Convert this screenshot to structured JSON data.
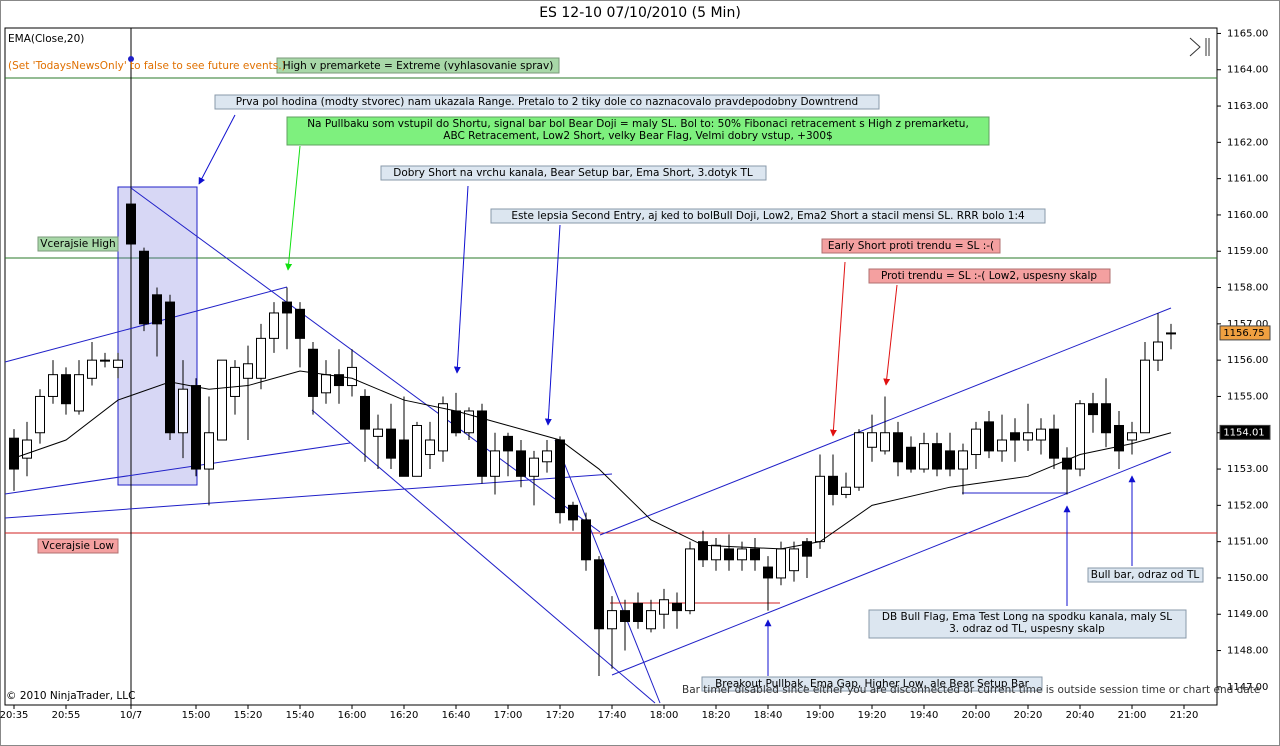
{
  "chart_data": {
    "type": "candlestick",
    "title": "ES 12-10  07/10/2010 (5 Min)",
    "categories": [
      "20:35",
      null,
      null,
      null,
      "20:55",
      null,
      null,
      null,
      null,
      "10/7",
      null,
      null,
      null,
      null,
      "15:00",
      null,
      null,
      null,
      "15:20",
      null,
      null,
      null,
      "15:40",
      null,
      null,
      null,
      "16:00",
      null,
      null,
      null,
      "16:20",
      null,
      null,
      null,
      "16:40",
      null,
      null,
      null,
      "17:00",
      null,
      null,
      null,
      "17:20",
      null,
      null,
      null,
      "17:40",
      null,
      null,
      null,
      "18:00",
      null,
      null,
      null,
      "18:20",
      null,
      null,
      null,
      "18:40",
      null,
      null,
      null,
      "19:00",
      null,
      null,
      null,
      "19:20",
      null,
      null,
      null,
      "19:40",
      null,
      null,
      null,
      "20:00",
      null,
      null,
      null,
      "20:20",
      null,
      null,
      null,
      "20:40",
      null,
      null,
      null,
      "21:00",
      null,
      null,
      null,
      "21:20"
    ],
    "open": [
      1153.85,
      1153.3,
      1154.0,
      1155.0,
      1155.6,
      1154.6,
      1155.5,
      1156.0,
      1155.8,
      1160.3,
      1159.0,
      1157.8,
      1157.6,
      1154.0,
      1155.3,
      1153.0,
      1153.8,
      1155.0,
      1155.5,
      1155.5,
      1156.6,
      1157.6,
      1157.4,
      1156.3,
      1155.1,
      1155.6,
      1155.3,
      1155.0,
      1153.9,
      1154.1,
      1153.8,
      1152.8,
      1153.4,
      1153.5,
      1154.6,
      1154.0,
      1154.6,
      1152.8,
      1153.9,
      1153.5,
      1152.8,
      1153.2,
      1153.8,
      1152.0,
      1151.6,
      1150.5,
      1148.6,
      1149.1,
      1149.3,
      1148.6,
      1149.0,
      1149.3,
      1149.1,
      1151.0,
      1150.5,
      1150.8,
      1150.5,
      1150.8,
      1150.3,
      1150.0,
      1150.2,
      1151.0,
      1151.0,
      1152.8,
      1152.3,
      1152.5,
      1153.6,
      1153.5,
      1154.0,
      1153.6,
      1153.0,
      1153.7,
      1153.5,
      1153.0,
      1153.4,
      1154.3,
      1153.5,
      1154.0,
      1153.8,
      1153.8,
      1154.1,
      1153.3,
      1153.0,
      1154.8,
      1154.8,
      1154.2,
      1153.8,
      1154.0,
      1156.0,
      1156.75,
      null
    ],
    "high": [
      1154.1,
      1154.3,
      1155.2,
      1156.0,
      1155.8,
      1156.0,
      1156.5,
      1156.2,
      1156.2,
      1160.7,
      1159.1,
      1158.0,
      1157.8,
      1156.0,
      1155.5,
      1155.0,
      1156.0,
      1156.0,
      1156.4,
      1157.0,
      1157.6,
      1158.0,
      1157.6,
      1156.5,
      1156.0,
      1156.3,
      1156.3,
      1155.2,
      1154.5,
      1154.8,
      1155.0,
      1154.3,
      1154.3,
      1155.0,
      1155.1,
      1154.7,
      1154.8,
      1154.0,
      1154.0,
      1153.8,
      1153.5,
      1153.8,
      1153.9,
      1152.1,
      1151.8,
      1150.6,
      1149.5,
      1149.4,
      1149.6,
      1149.4,
      1149.7,
      1149.6,
      1151.0,
      1151.3,
      1151.1,
      1151.2,
      1151.0,
      1151.1,
      1150.6,
      1151.0,
      1151.0,
      1151.1,
      1153.4,
      1153.4,
      1152.9,
      1154.1,
      1154.5,
      1155.0,
      1154.3,
      1153.9,
      1154.0,
      1154.0,
      1154.0,
      1153.7,
      1154.3,
      1154.6,
      1154.5,
      1154.4,
      1154.8,
      1154.4,
      1154.5,
      1153.6,
      1154.9,
      1155.1,
      1155.5,
      1154.6,
      1154.3,
      1156.5,
      1157.3,
      1157.0,
      null
    ],
    "low": [
      1152.4,
      1152.8,
      1153.7,
      1154.8,
      1154.5,
      1154.5,
      1155.3,
      1155.8,
      1155.5,
      1158.9,
      1156.8,
      1156.1,
      1153.8,
      1153.3,
      1152.8,
      1152.0,
      1153.8,
      1154.5,
      1153.8,
      1155.2,
      1156.2,
      1156.3,
      1155.8,
      1154.5,
      1154.8,
      1154.8,
      1155.0,
      1153.2,
      1153.0,
      1153.0,
      1152.8,
      1152.8,
      1153.0,
      1153.2,
      1153.9,
      1153.8,
      1152.6,
      1152.3,
      1152.8,
      1152.5,
      1152.0,
      1152.9,
      1151.5,
      1151.3,
      1150.2,
      1147.3,
      1147.5,
      1148.0,
      1148.6,
      1148.5,
      1148.6,
      1148.6,
      1149.0,
      1150.3,
      1150.2,
      1150.2,
      1150.2,
      1150.2,
      1149.1,
      1149.8,
      1149.9,
      1150.0,
      1150.8,
      1152.0,
      1152.2,
      1152.4,
      1153.2,
      1153.4,
      1152.8,
      1152.9,
      1152.9,
      1152.8,
      1152.8,
      1152.3,
      1153.0,
      1153.3,
      1153.2,
      1153.2,
      1153.5,
      1153.4,
      1153.0,
      1152.3,
      1152.8,
      1154.0,
      1153.6,
      1153.0,
      1153.4,
      1154.0,
      1155.7,
      1156.3,
      null
    ],
    "close": [
      1153.0,
      1153.8,
      1155.0,
      1155.6,
      1154.8,
      1155.6,
      1156.0,
      1156.0,
      1156.0,
      1159.2,
      1157.0,
      1157.0,
      1154.0,
      1155.2,
      1153.0,
      1154.0,
      1156.0,
      1155.8,
      1155.9,
      1156.6,
      1157.3,
      1157.3,
      1156.6,
      1155.0,
      1155.6,
      1155.3,
      1155.8,
      1154.1,
      1154.1,
      1153.3,
      1152.8,
      1154.2,
      1153.8,
      1154.8,
      1154.0,
      1154.6,
      1152.8,
      1153.5,
      1153.5,
      1152.8,
      1153.3,
      1153.5,
      1151.8,
      1151.6,
      1150.5,
      1148.6,
      1149.1,
      1148.8,
      1148.8,
      1149.1,
      1149.4,
      1149.1,
      1150.8,
      1150.5,
      1150.9,
      1150.5,
      1150.8,
      1150.5,
      1150.0,
      1150.8,
      1150.8,
      1150.6,
      1152.8,
      1152.3,
      1152.5,
      1154.0,
      1154.0,
      1154.0,
      1153.2,
      1153.0,
      1153.7,
      1153.0,
      1153.0,
      1153.5,
      1154.1,
      1153.5,
      1153.8,
      1153.8,
      1154.0,
      1154.1,
      1153.3,
      1153.0,
      1154.8,
      1154.5,
      1154.0,
      1153.5,
      1154.0,
      1156.0,
      1156.5,
      1156.75,
      null
    ],
    "up_color": "#ffffff",
    "down_color": "#000000",
    "series": [
      {
        "name": "EMA(Close,20)",
        "color": "#000000",
        "x": [
          0,
          4,
          8,
          12,
          15,
          18,
          22,
          26,
          30,
          34,
          38,
          42,
          45,
          49,
          53,
          59,
          62,
          66,
          72,
          78,
          82,
          86,
          89
        ],
        "values": [
          1153.3,
          1153.8,
          1154.9,
          1155.4,
          1155.2,
          1155.3,
          1155.7,
          1155.5,
          1154.9,
          1154.6,
          1154.2,
          1153.8,
          1153.0,
          1151.6,
          1150.9,
          1150.8,
          1151.0,
          1152.0,
          1152.5,
          1152.8,
          1153.4,
          1153.7,
          1154.0
        ]
      }
    ],
    "ylim": [
      1146.5,
      1165.15
    ],
    "yticks": [
      {
        "value": 1147,
        "label": "1147.00"
      },
      {
        "value": 1148,
        "label": "1148.00"
      },
      {
        "value": 1149,
        "label": "1149.00"
      },
      {
        "value": 1150,
        "label": "1150.00"
      },
      {
        "value": 1151,
        "label": "1151.00"
      },
      {
        "value": 1152,
        "label": "1152.00"
      },
      {
        "value": 1153,
        "label": "1153.00"
      },
      {
        "value": 1154,
        "label": "1154.00"
      },
      {
        "value": 1155,
        "label": "1155.00"
      },
      {
        "value": 1156,
        "label": "1156.00"
      },
      {
        "value": 1157,
        "label": "1157.00"
      },
      {
        "value": 1158,
        "label": "1158.00"
      },
      {
        "value": 1159,
        "label": "1159.00"
      },
      {
        "value": 1160,
        "label": "1160.00"
      },
      {
        "value": 1161,
        "label": "1161.00"
      },
      {
        "value": 1162,
        "label": "1162.00"
      },
      {
        "value": 1163,
        "label": "1163.00"
      },
      {
        "value": 1164,
        "label": "1164.00"
      },
      {
        "value": 1165,
        "label": "1165.00"
      }
    ],
    "price_markers": [
      1156.75,
      1154.01
    ],
    "price_marker_colors": [
      "#f0a040",
      "#000000"
    ],
    "annotations": [
      "(Set 'TodaysNewsOnly' to false to see future events.)",
      "High v premarkete = Extreme (vyhlasovanie sprav)",
      "Prva pol hodina (modty stvorec) nam ukazala Range. Pretalo to 2 tiky dole  co naznacovalo pravdepodobny Downtrend",
      "Na Pullbaku som vstupil do Shortu, signal bar bol Bear Doji = maly SL. Bol to: 50% Fibonaci retracement s High z premarketu,",
      "ABC Retracement, Low2 Short, velky Bear Flag, Velmi dobry vstup, +300$",
      "Dobry Short na vrchu kanala, Bear Setup bar, Ema Short, 3.dotyk TL",
      "Este lepsia Second Entry, aj ked to bolBull Doji, Low2, Ema2 Short a stacil mensi SL. RRR bolo 1:4",
      "Early Short proti trendu = SL  :-(",
      "Proti trendu = SL  :-(  Low2, uspesny skalp",
      "Vcerajsie High",
      "Vcerajsie Low",
      "Bull bar, odraz od TL",
      "DB Bull Flag, Ema Test Long na spodku kanala, maly SL",
      "3. odraz od TL, uspesny skalp",
      "Breakout Pullbak, Ema Gap, Higher Low, ale Bear Setup Bar",
      "Bar timer disabled since either you are disconnected or current time is outside session time or chart end date",
      "© 2010 NinjaTrader, LLC"
    ]
  }
}
